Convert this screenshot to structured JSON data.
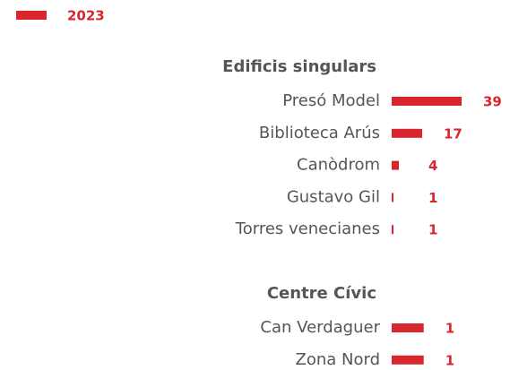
{
  "chart_data": {
    "type": "bar",
    "legend": "2023",
    "color": "#d9262e",
    "groups": [
      {
        "title": "Edificis singulars",
        "categories": [
          "Presó Model",
          "Biblioteca Arús",
          "Canòdrom",
          "Gustavo Gil",
          "Torres venecianes"
        ],
        "values": [
          39,
          17,
          4,
          1,
          1
        ],
        "xlim": [
          0,
          50
        ]
      },
      {
        "title": "Centre Cívic",
        "categories": [
          "Can Verdaguer",
          "Zona Nord"
        ],
        "values": [
          1,
          1
        ],
        "xlim": [
          0,
          2.8
        ]
      }
    ]
  }
}
